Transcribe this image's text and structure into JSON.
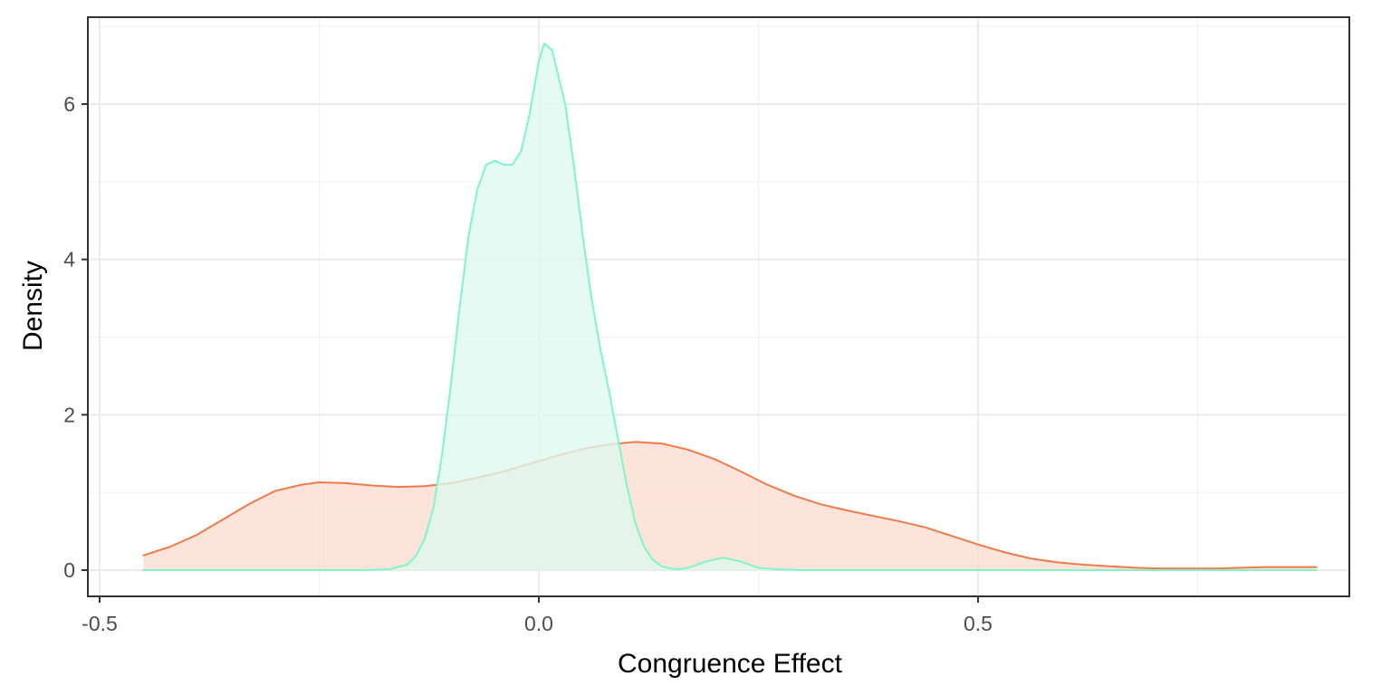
{
  "chart_data": {
    "type": "area",
    "subtype": "density",
    "xlabel": "Congruence Effect",
    "ylabel": "Density",
    "xlim": [
      -0.5,
      0.9
    ],
    "ylim": [
      -0.3,
      7.05
    ],
    "x_ticks": [
      {
        "value": -0.5,
        "label": "-0.5"
      },
      {
        "value": 0.0,
        "label": "0.0"
      },
      {
        "value": 0.5,
        "label": "0.5"
      }
    ],
    "y_ticks": [
      {
        "value": 0,
        "label": "0"
      },
      {
        "value": 2,
        "label": "2"
      },
      {
        "value": 4,
        "label": "4"
      },
      {
        "value": 6,
        "label": "6"
      }
    ],
    "grid": true,
    "legend": "none",
    "series": [
      {
        "color": "#f07a4a",
        "fill": "#fcdcd0",
        "points": [
          [
            -0.45,
            0.19
          ],
          [
            -0.42,
            0.3
          ],
          [
            -0.39,
            0.45
          ],
          [
            -0.36,
            0.65
          ],
          [
            -0.33,
            0.85
          ],
          [
            -0.3,
            1.02
          ],
          [
            -0.27,
            1.1
          ],
          [
            -0.25,
            1.13
          ],
          [
            -0.22,
            1.12
          ],
          [
            -0.19,
            1.09
          ],
          [
            -0.16,
            1.07
          ],
          [
            -0.13,
            1.08
          ],
          [
            -0.1,
            1.12
          ],
          [
            -0.07,
            1.19
          ],
          [
            -0.04,
            1.27
          ],
          [
            -0.01,
            1.37
          ],
          [
            0.02,
            1.47
          ],
          [
            0.05,
            1.56
          ],
          [
            0.08,
            1.62
          ],
          [
            0.11,
            1.65
          ],
          [
            0.14,
            1.63
          ],
          [
            0.17,
            1.55
          ],
          [
            0.2,
            1.43
          ],
          [
            0.23,
            1.27
          ],
          [
            0.26,
            1.1
          ],
          [
            0.29,
            0.96
          ],
          [
            0.32,
            0.85
          ],
          [
            0.35,
            0.77
          ],
          [
            0.38,
            0.7
          ],
          [
            0.41,
            0.63
          ],
          [
            0.44,
            0.55
          ],
          [
            0.47,
            0.44
          ],
          [
            0.5,
            0.33
          ],
          [
            0.53,
            0.23
          ],
          [
            0.56,
            0.15
          ],
          [
            0.59,
            0.1
          ],
          [
            0.62,
            0.07
          ],
          [
            0.65,
            0.05
          ],
          [
            0.68,
            0.03
          ],
          [
            0.71,
            0.02
          ],
          [
            0.74,
            0.02
          ],
          [
            0.77,
            0.02
          ],
          [
            0.8,
            0.03
          ],
          [
            0.83,
            0.04
          ],
          [
            0.86,
            0.04
          ],
          [
            0.885,
            0.04
          ]
        ]
      },
      {
        "color": "#7ff5c8",
        "fill": "#def9f0",
        "points": [
          [
            -0.45,
            0.0
          ],
          [
            -0.2,
            0.0
          ],
          [
            -0.17,
            0.01
          ],
          [
            -0.15,
            0.07
          ],
          [
            -0.14,
            0.18
          ],
          [
            -0.13,
            0.4
          ],
          [
            -0.12,
            0.8
          ],
          [
            -0.11,
            1.5
          ],
          [
            -0.1,
            2.4
          ],
          [
            -0.09,
            3.4
          ],
          [
            -0.08,
            4.3
          ],
          [
            -0.07,
            4.9
          ],
          [
            -0.06,
            5.22
          ],
          [
            -0.05,
            5.27
          ],
          [
            -0.04,
            5.22
          ],
          [
            -0.03,
            5.22
          ],
          [
            -0.02,
            5.4
          ],
          [
            -0.01,
            5.9
          ],
          [
            0.0,
            6.55
          ],
          [
            0.006,
            6.78
          ],
          [
            0.015,
            6.7
          ],
          [
            0.03,
            6.0
          ],
          [
            0.04,
            5.2
          ],
          [
            0.05,
            4.3
          ],
          [
            0.06,
            3.5
          ],
          [
            0.07,
            2.85
          ],
          [
            0.08,
            2.3
          ],
          [
            0.09,
            1.7
          ],
          [
            0.1,
            1.1
          ],
          [
            0.11,
            0.6
          ],
          [
            0.12,
            0.3
          ],
          [
            0.13,
            0.13
          ],
          [
            0.14,
            0.05
          ],
          [
            0.15,
            0.02
          ],
          [
            0.16,
            0.01
          ],
          [
            0.17,
            0.03
          ],
          [
            0.19,
            0.11
          ],
          [
            0.21,
            0.16
          ],
          [
            0.23,
            0.11
          ],
          [
            0.25,
            0.03
          ],
          [
            0.27,
            0.01
          ],
          [
            0.3,
            0.0
          ],
          [
            0.885,
            0.0
          ]
        ]
      }
    ]
  }
}
